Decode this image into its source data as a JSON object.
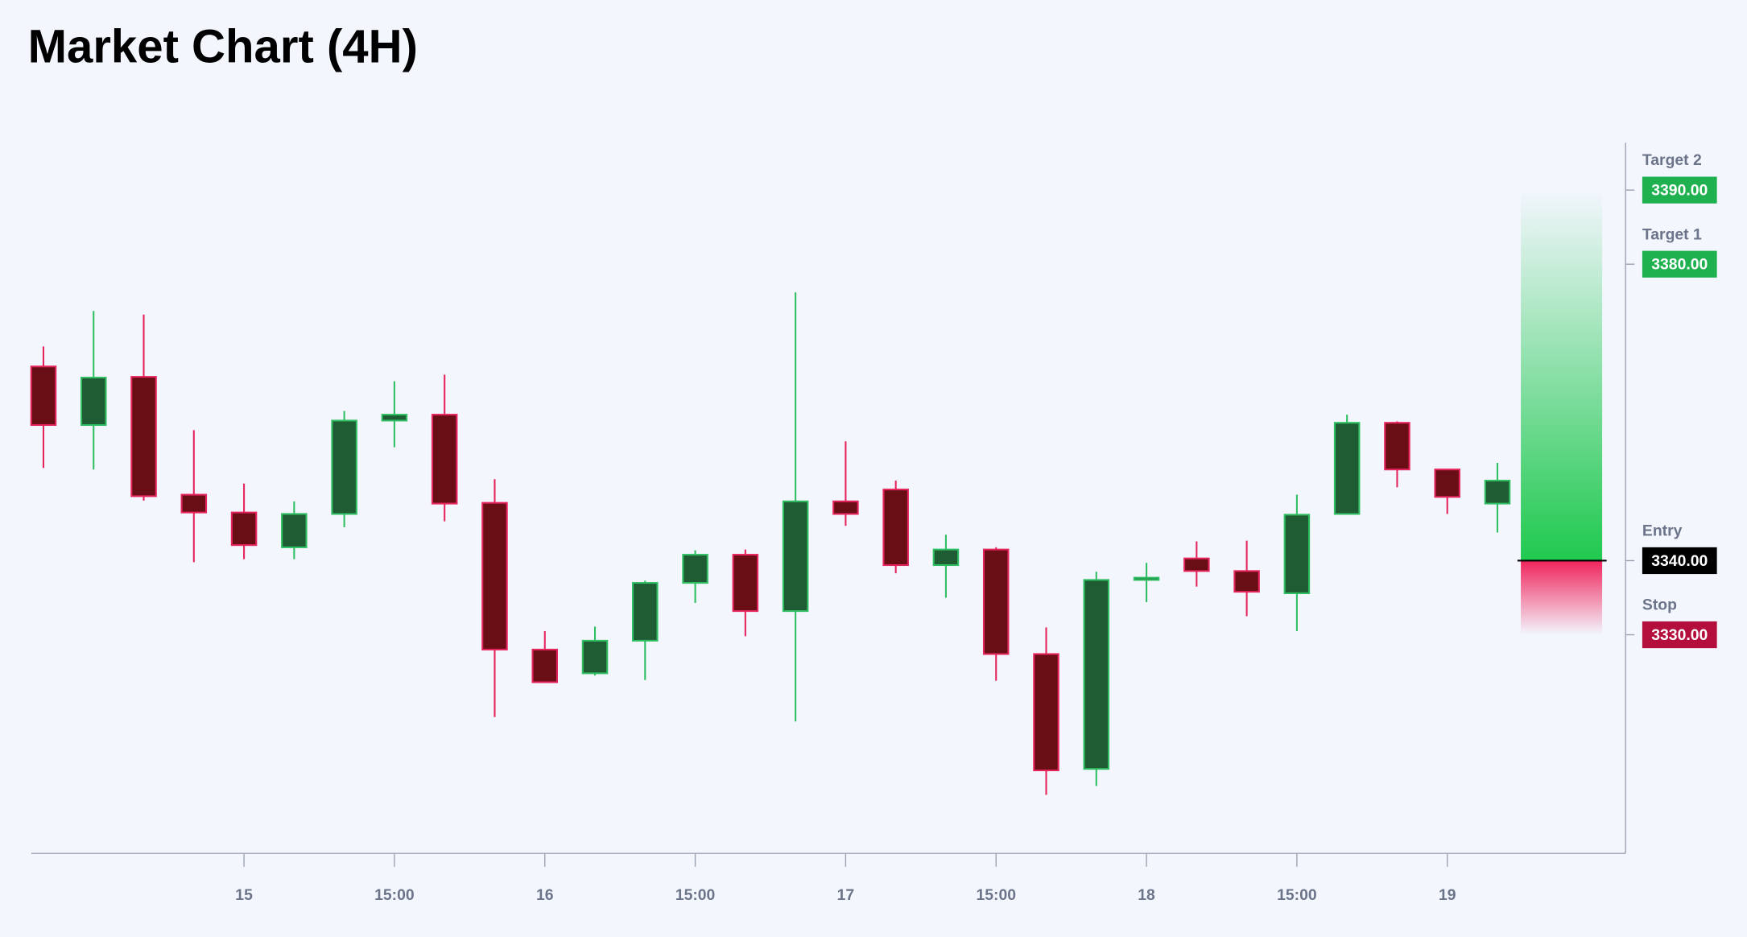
{
  "chart_data": {
    "type": "candlestick",
    "title": "Market Chart (4H)",
    "categories": [
      null,
      null,
      null,
      null,
      "15",
      null,
      null,
      "15:00",
      null,
      null,
      "16",
      null,
      null,
      "15:00",
      null,
      null,
      "17",
      null,
      null,
      "15:00",
      null,
      null,
      "18",
      null,
      null,
      "15:00",
      null,
      null,
      "19",
      null
    ],
    "open": [
      3366.2,
      3358.3,
      3364.8,
      3348.9,
      3346.5,
      3341.8,
      3346.3,
      3358.9,
      3359.7,
      3347.8,
      3328.0,
      3324.8,
      3329.2,
      3337.0,
      3340.8,
      3333.2,
      3348.0,
      3349.6,
      3339.4,
      3341.5,
      3327.4,
      3311.9,
      3337.4,
      3340.3,
      3338.6,
      3335.6,
      3346.3,
      3358.6,
      3352.3,
      3347.7
    ],
    "high": [
      3368.9,
      3373.7,
      3373.2,
      3357.6,
      3350.4,
      3348.0,
      3360.2,
      3364.2,
      3365.1,
      3351.0,
      3330.5,
      3331.1,
      3337.3,
      3341.4,
      3341.5,
      3376.2,
      3356.1,
      3350.8,
      3343.5,
      3341.8,
      3331.0,
      3338.5,
      3339.7,
      3342.6,
      3342.7,
      3348.9,
      3359.7,
      3358.8,
      3352.3,
      3353.2
    ],
    "low": [
      3352.5,
      3352.3,
      3348.1,
      3339.8,
      3340.2,
      3340.2,
      3344.5,
      3355.3,
      3345.3,
      3318.9,
      3323.6,
      3324.5,
      3323.9,
      3334.3,
      3329.8,
      3318.3,
      3344.7,
      3338.3,
      3335.0,
      3323.8,
      3308.4,
      3309.6,
      3334.4,
      3336.5,
      3332.5,
      3330.5,
      3346.3,
      3349.9,
      3346.3,
      3343.8
    ],
    "close": [
      3358.3,
      3364.7,
      3348.7,
      3346.5,
      3342.1,
      3346.3,
      3358.9,
      3359.7,
      3347.7,
      3328.0,
      3323.6,
      3329.2,
      3337.0,
      3340.8,
      3333.2,
      3348.0,
      3346.3,
      3339.4,
      3341.5,
      3327.4,
      3311.7,
      3337.4,
      3337.7,
      3338.6,
      3335.8,
      3346.2,
      3358.6,
      3352.3,
      3348.6,
      3350.8
    ],
    "ylim": [
      3300.5,
      3396.4
    ],
    "up_color": "#1f5c33",
    "up_edge": "#2fbf62",
    "down_color": "#6a0e16",
    "down_edge": "#e6245c",
    "levels": [
      {
        "name": "Target 2",
        "value": 3390,
        "label": "3390.00",
        "color": "#1fb14f"
      },
      {
        "name": "Target 1",
        "value": 3380,
        "label": "3380.00",
        "color": "#1fb14f"
      },
      {
        "name": "Entry",
        "value": 3340,
        "label": "3340.00",
        "color": "#000000"
      },
      {
        "name": "Stop",
        "value": 3330,
        "label": "3330.00",
        "color": "#b30e3c"
      }
    ]
  }
}
